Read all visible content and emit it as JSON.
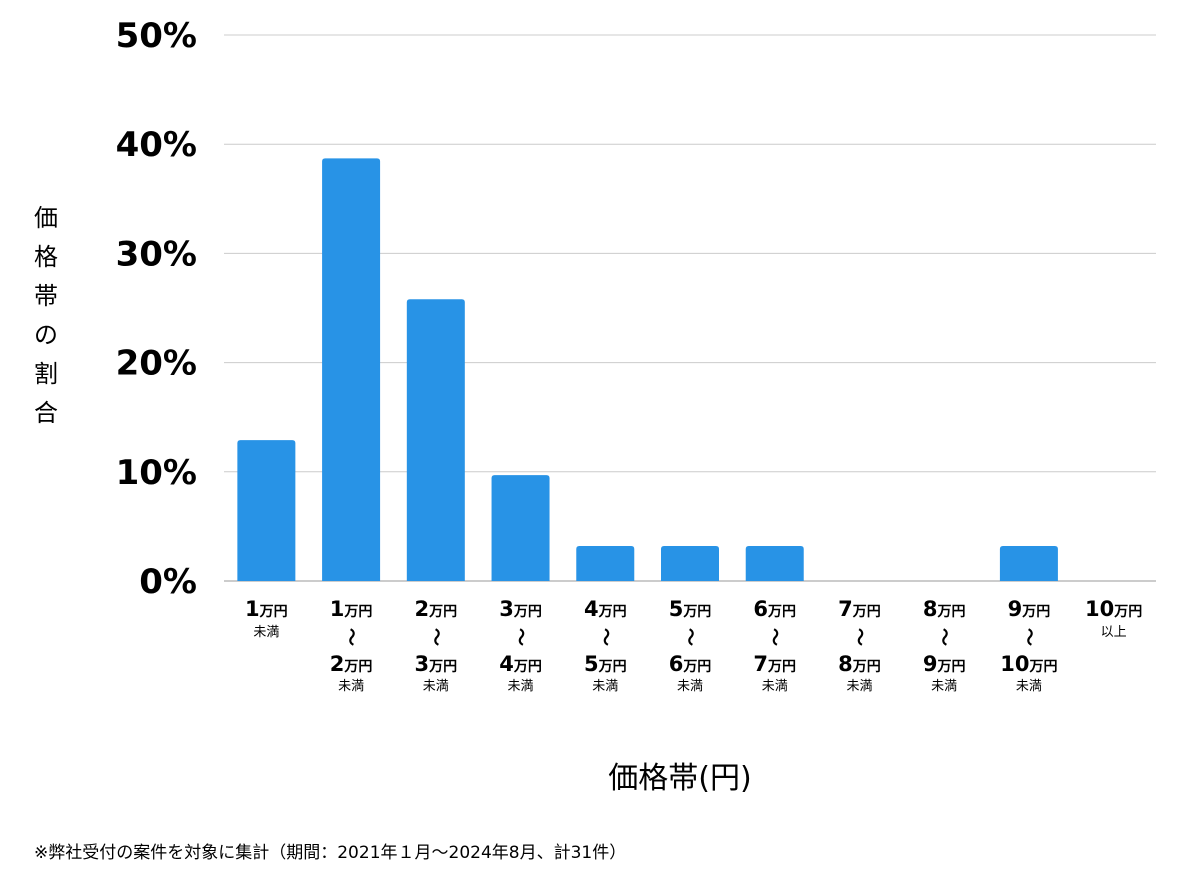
{
  "chart_data": {
    "type": "bar",
    "categories": [
      {
        "top": "1",
        "top_unit": "万円",
        "sep": "",
        "bottom": "",
        "bottom_unit": "",
        "note": "未満"
      },
      {
        "top": "1",
        "top_unit": "万円",
        "sep": "〜",
        "bottom": "2",
        "bottom_unit": "万円",
        "note": "未満"
      },
      {
        "top": "2",
        "top_unit": "万円",
        "sep": "〜",
        "bottom": "3",
        "bottom_unit": "万円",
        "note": "未満"
      },
      {
        "top": "3",
        "top_unit": "万円",
        "sep": "〜",
        "bottom": "4",
        "bottom_unit": "万円",
        "note": "未満"
      },
      {
        "top": "4",
        "top_unit": "万円",
        "sep": "〜",
        "bottom": "5",
        "bottom_unit": "万円",
        "note": "未満"
      },
      {
        "top": "5",
        "top_unit": "万円",
        "sep": "〜",
        "bottom": "6",
        "bottom_unit": "万円",
        "note": "未満"
      },
      {
        "top": "6",
        "top_unit": "万円",
        "sep": "〜",
        "bottom": "7",
        "bottom_unit": "万円",
        "note": "未満"
      },
      {
        "top": "7",
        "top_unit": "万円",
        "sep": "〜",
        "bottom": "8",
        "bottom_unit": "万円",
        "note": "未満"
      },
      {
        "top": "8",
        "top_unit": "万円",
        "sep": "〜",
        "bottom": "9",
        "bottom_unit": "万円",
        "note": "未満"
      },
      {
        "top": "9",
        "top_unit": "万円",
        "sep": "〜",
        "bottom": "10",
        "bottom_unit": "万円",
        "note": "未満"
      },
      {
        "top": "10",
        "top_unit": "万円",
        "sep": "",
        "bottom": "",
        "bottom_unit": "",
        "note": "以上"
      }
    ],
    "values": [
      12.9,
      38.7,
      25.8,
      9.7,
      3.2,
      3.2,
      3.2,
      0,
      0,
      3.2,
      0
    ],
    "ylim": [
      0,
      50
    ],
    "yticks": [
      "0%",
      "10%",
      "20%",
      "30%",
      "40%",
      "50%"
    ],
    "ylabel": "価格帯の割合",
    "xlabel": "価格帯(円)",
    "grid": true,
    "bar_color": "#2893e6",
    "grid_color": "#cccccc"
  },
  "footnote": "※弊社受付の案件を対象に集計（期間：2021年１月〜2024年8月、計31件）"
}
